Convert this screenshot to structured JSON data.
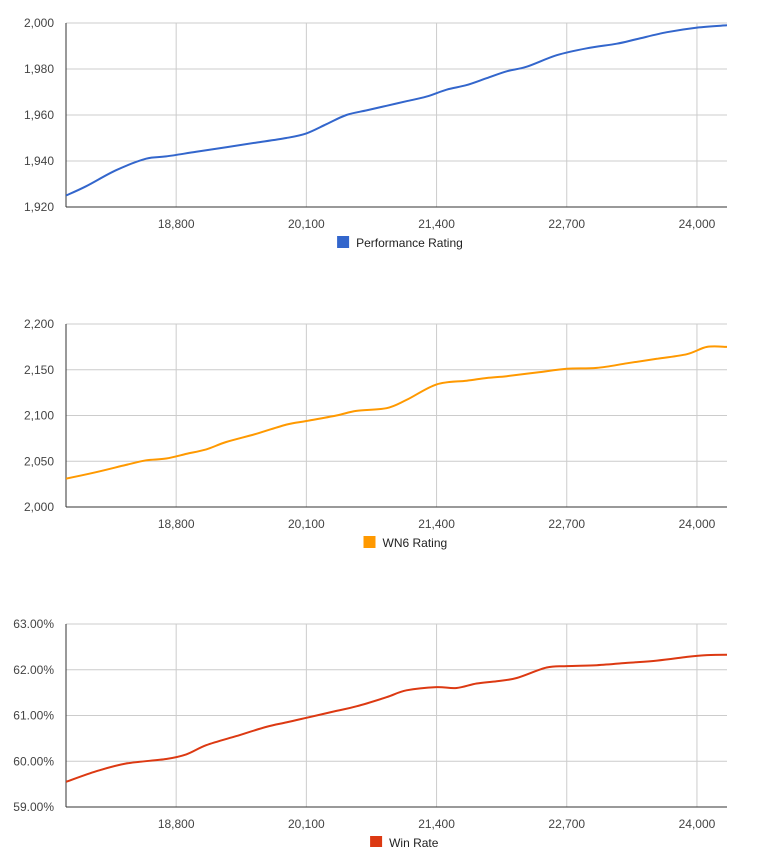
{
  "chart_data": [
    {
      "type": "line",
      "title": "",
      "xlabel": "",
      "ylabel": "",
      "xlim": [
        17700,
        24300
      ],
      "ylim": [
        1920,
        2000
      ],
      "x_ticks": [
        18800,
        20100,
        21400,
        22700,
        24000
      ],
      "x_tick_labels": [
        "18,800",
        "20,100",
        "21,400",
        "22,700",
        "24,000"
      ],
      "y_ticks": [
        1920,
        1940,
        1960,
        1980,
        2000
      ],
      "y_tick_labels": [
        "1,920",
        "1,940",
        "1,960",
        "1,980",
        "2,000"
      ],
      "grid": true,
      "legend_position": "bottom",
      "series": [
        {
          "name": "Performance Rating",
          "color": "#3366cc",
          "x": [
            17700,
            17900,
            18200,
            18500,
            18700,
            19000,
            19300,
            19600,
            19900,
            20100,
            20300,
            20500,
            20700,
            20900,
            21100,
            21300,
            21500,
            21700,
            21900,
            22100,
            22300,
            22600,
            22900,
            23200,
            23400,
            23700,
            24000,
            24300
          ],
          "y": [
            1925,
            1929,
            1936,
            1941,
            1942,
            1944,
            1946,
            1948,
            1950,
            1952,
            1956,
            1960,
            1962,
            1964,
            1966,
            1968,
            1971,
            1973,
            1976,
            1979,
            1981,
            1986,
            1989,
            1991,
            1993,
            1996,
            1998,
            1999
          ]
        }
      ]
    },
    {
      "type": "line",
      "title": "",
      "xlabel": "",
      "ylabel": "",
      "xlim": [
        17700,
        24300
      ],
      "ylim": [
        2000,
        2200
      ],
      "x_ticks": [
        18800,
        20100,
        21400,
        22700,
        24000
      ],
      "x_tick_labels": [
        "18,800",
        "20,100",
        "21,400",
        "22,700",
        "24,000"
      ],
      "y_ticks": [
        2000,
        2050,
        2100,
        2150,
        2200
      ],
      "y_tick_labels": [
        "2,000",
        "2,050",
        "2,100",
        "2,150",
        "2,200"
      ],
      "grid": true,
      "legend_position": "bottom",
      "series": [
        {
          "name": "WN6 Rating",
          "color": "#ff9900",
          "x": [
            17700,
            18000,
            18300,
            18500,
            18700,
            18900,
            19100,
            19300,
            19600,
            19900,
            20100,
            20400,
            20600,
            20900,
            21100,
            21400,
            21700,
            21900,
            22100,
            22400,
            22700,
            23000,
            23300,
            23600,
            23900,
            24100,
            24300
          ],
          "y": [
            2031,
            2038,
            2046,
            2051,
            2053,
            2058,
            2063,
            2071,
            2080,
            2090,
            2094,
            2100,
            2105,
            2108,
            2117,
            2134,
            2138,
            2141,
            2143,
            2147,
            2151,
            2152,
            2157,
            2162,
            2167,
            2175,
            2175
          ]
        }
      ]
    },
    {
      "type": "line",
      "title": "",
      "xlabel": "",
      "ylabel": "",
      "xlim": [
        17700,
        24300
      ],
      "ylim": [
        59.0,
        63.0
      ],
      "x_ticks": [
        18800,
        20100,
        21400,
        22700,
        24000
      ],
      "x_tick_labels": [
        "18,800",
        "20,100",
        "21,400",
        "22,700",
        "24,000"
      ],
      "y_ticks": [
        59.0,
        60.0,
        61.0,
        62.0,
        63.0
      ],
      "y_tick_labels": [
        "59.00%",
        "60.00%",
        "61.00%",
        "62.00%",
        "63.00%"
      ],
      "grid": true,
      "legend_position": "bottom",
      "series": [
        {
          "name": "Win Rate",
          "color": "#dc3912",
          "x": [
            17700,
            18000,
            18300,
            18700,
            18900,
            19100,
            19400,
            19700,
            19900,
            20100,
            20400,
            20600,
            20900,
            21100,
            21400,
            21600,
            21800,
            22000,
            22200,
            22500,
            22700,
            23000,
            23300,
            23600,
            23900,
            24100,
            24300
          ],
          "y": [
            59.55,
            59.78,
            59.95,
            60.05,
            60.15,
            60.35,
            60.55,
            60.75,
            60.85,
            60.95,
            61.1,
            61.2,
            61.4,
            61.55,
            61.62,
            61.6,
            61.7,
            61.75,
            61.82,
            62.05,
            62.08,
            62.1,
            62.15,
            62.2,
            62.28,
            62.32,
            62.33
          ]
        }
      ]
    }
  ]
}
